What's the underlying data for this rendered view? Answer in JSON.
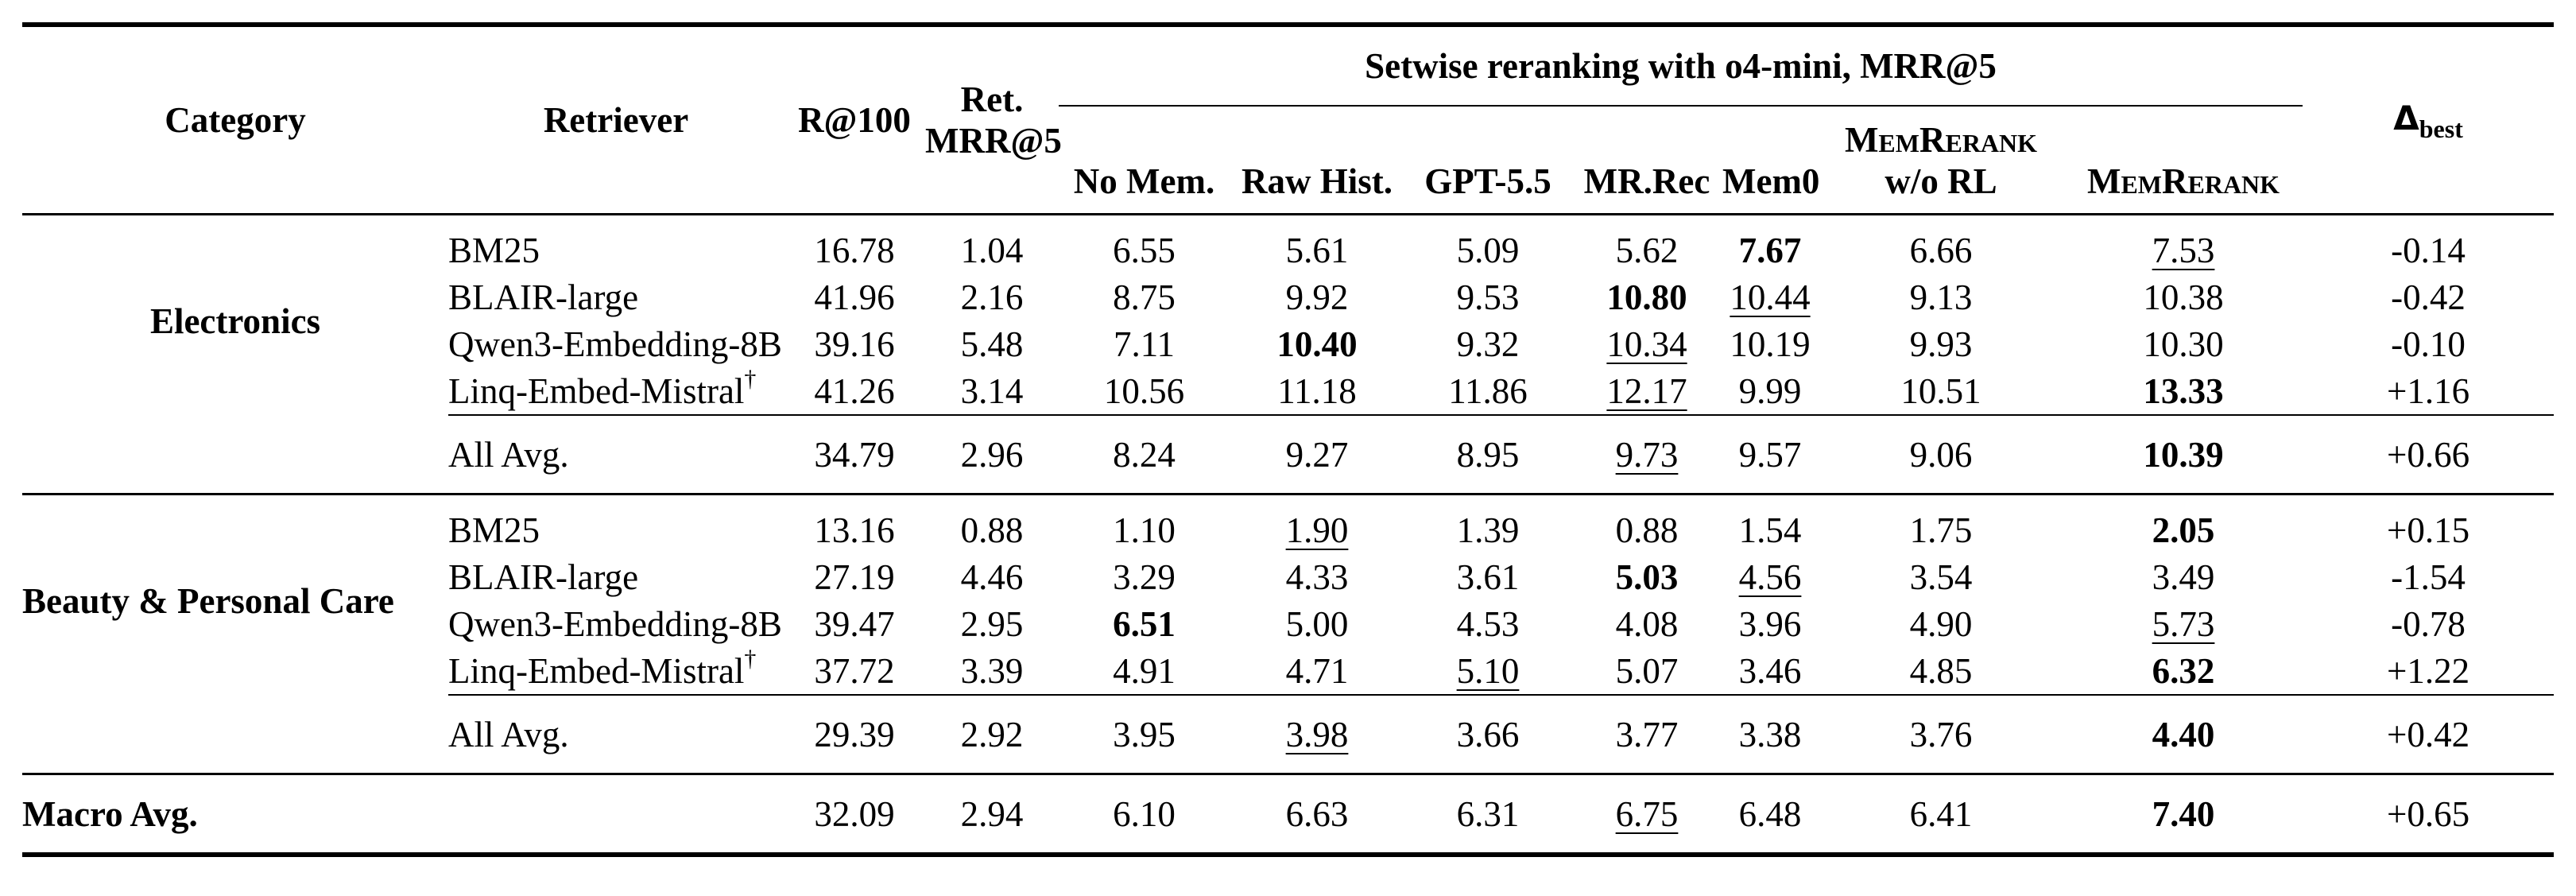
{
  "header": {
    "category": "Category",
    "retriever": "Retriever",
    "r100": "R@100",
    "ret_mrr_line1": "Ret.",
    "ret_mrr_line2": "MRR@5",
    "setwise_group": "Setwise reranking with o4-mini, MRR@5",
    "no_mem": "No Mem.",
    "raw_hist": "Raw Hist.",
    "gpt55": "GPT-5.5",
    "mrrec": "MR.Rec",
    "mem0": "Mem0",
    "memrerank_worl_line1": "MemRerank",
    "memrerank_worl_line2": "w/o RL",
    "memrerank": "MemRerank",
    "delta_symbol": "Δ",
    "delta_sub": "best"
  },
  "sections": [
    {
      "category": "Electronics",
      "rows": [
        {
          "retriever": "BM25",
          "dagger": "",
          "values": [
            "16.78",
            "1.04",
            "6.55",
            "5.61",
            "5.09",
            "5.62",
            "7.67",
            "6.66",
            "7.53",
            "-0.14"
          ],
          "bold": [
            6
          ],
          "underline": [
            8
          ]
        },
        {
          "retriever": "BLAIR-large",
          "dagger": "",
          "values": [
            "41.96",
            "2.16",
            "8.75",
            "9.92",
            "9.53",
            "10.80",
            "10.44",
            "9.13",
            "10.38",
            "-0.42"
          ],
          "bold": [
            5
          ],
          "underline": [
            6
          ]
        },
        {
          "retriever": "Qwen3-Embedding-8B",
          "dagger": "",
          "values": [
            "39.16",
            "5.48",
            "7.11",
            "10.40",
            "9.32",
            "10.34",
            "10.19",
            "9.93",
            "10.30",
            "-0.10"
          ],
          "bold": [
            3
          ],
          "underline": [
            5
          ]
        },
        {
          "retriever": "Linq-Embed-Mistral",
          "dagger": "†",
          "values": [
            "41.26",
            "3.14",
            "10.56",
            "11.18",
            "11.86",
            "12.17",
            "9.99",
            "10.51",
            "13.33",
            "+1.16"
          ],
          "bold": [
            8
          ],
          "underline": [
            5
          ]
        }
      ],
      "avg": {
        "retriever": "All Avg.",
        "values": [
          "34.79",
          "2.96",
          "8.24",
          "9.27",
          "8.95",
          "9.73",
          "9.57",
          "9.06",
          "10.39",
          "+0.66"
        ],
        "bold": [
          8
        ],
        "underline": [
          5
        ]
      }
    },
    {
      "category": "Beauty & Personal Care",
      "rows": [
        {
          "retriever": "BM25",
          "dagger": "",
          "values": [
            "13.16",
            "0.88",
            "1.10",
            "1.90",
            "1.39",
            "0.88",
            "1.54",
            "1.75",
            "2.05",
            "+0.15"
          ],
          "bold": [
            8
          ],
          "underline": [
            3
          ]
        },
        {
          "retriever": "BLAIR-large",
          "dagger": "",
          "values": [
            "27.19",
            "4.46",
            "3.29",
            "4.33",
            "3.61",
            "5.03",
            "4.56",
            "3.54",
            "3.49",
            "-1.54"
          ],
          "bold": [
            5
          ],
          "underline": [
            6
          ]
        },
        {
          "retriever": "Qwen3-Embedding-8B",
          "dagger": "",
          "values": [
            "39.47",
            "2.95",
            "6.51",
            "5.00",
            "4.53",
            "4.08",
            "3.96",
            "4.90",
            "5.73",
            "-0.78"
          ],
          "bold": [
            2
          ],
          "underline": [
            8
          ]
        },
        {
          "retriever": "Linq-Embed-Mistral",
          "dagger": "†",
          "values": [
            "37.72",
            "3.39",
            "4.91",
            "4.71",
            "5.10",
            "5.07",
            "3.46",
            "4.85",
            "6.32",
            "+1.22"
          ],
          "bold": [
            8
          ],
          "underline": [
            4
          ]
        }
      ],
      "avg": {
        "retriever": "All Avg.",
        "values": [
          "29.39",
          "2.92",
          "3.95",
          "3.98",
          "3.66",
          "3.77",
          "3.38",
          "3.76",
          "4.40",
          "+0.42"
        ],
        "bold": [
          8
        ],
        "underline": [
          3
        ]
      }
    }
  ],
  "macro": {
    "label": "Macro Avg.",
    "values": [
      "32.09",
      "2.94",
      "6.10",
      "6.63",
      "6.31",
      "6.75",
      "6.48",
      "6.41",
      "7.40",
      "+0.65"
    ],
    "bold": [
      8
    ],
    "underline": [
      5
    ]
  }
}
